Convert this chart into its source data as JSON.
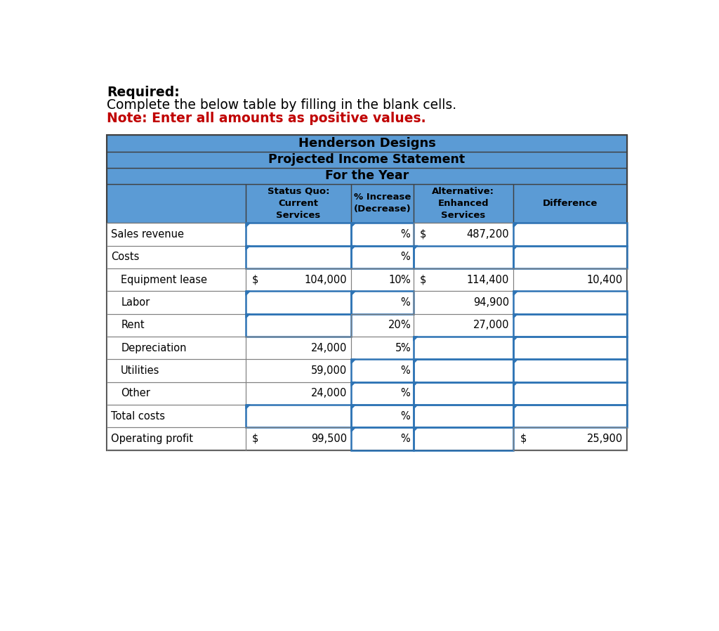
{
  "title1": "Henderson Designs",
  "title2": "Projected Income Statement",
  "title3": "For the Year",
  "rows": [
    {
      "label": "Sales revenue",
      "indent": 0,
      "sq": "",
      "sq_prefix": "",
      "pct_num": "",
      "alt_prefix": "$",
      "alt": "487,200",
      "diff": "",
      "diff_prefix": "",
      "input_sq": true,
      "input_pct": true,
      "input_alt": false,
      "input_diff": true
    },
    {
      "label": "Costs",
      "indent": 0,
      "sq": "",
      "sq_prefix": "",
      "pct_num": "",
      "alt_prefix": "",
      "alt": "",
      "diff": "",
      "diff_prefix": "",
      "input_sq": true,
      "input_pct": true,
      "input_alt": true,
      "input_diff": true
    },
    {
      "label": "Equipment lease",
      "indent": 1,
      "sq": "104,000",
      "sq_prefix": "$",
      "pct_num": "10",
      "alt_prefix": "$",
      "alt": "114,400",
      "diff": "10,400",
      "diff_prefix": "",
      "input_sq": false,
      "input_pct": false,
      "input_alt": false,
      "input_diff": false
    },
    {
      "label": "Labor",
      "indent": 1,
      "sq": "",
      "sq_prefix": "",
      "pct_num": "",
      "alt_prefix": "",
      "alt": "94,900",
      "diff": "",
      "diff_prefix": "",
      "input_sq": true,
      "input_pct": true,
      "input_alt": false,
      "input_diff": true
    },
    {
      "label": "Rent",
      "indent": 1,
      "sq": "",
      "sq_prefix": "",
      "pct_num": "20",
      "alt_prefix": "",
      "alt": "27,000",
      "diff": "",
      "diff_prefix": "",
      "input_sq": true,
      "input_pct": false,
      "input_alt": false,
      "input_diff": true
    },
    {
      "label": "Depreciation",
      "indent": 1,
      "sq": "24,000",
      "sq_prefix": "",
      "pct_num": "5",
      "alt_prefix": "",
      "alt": "",
      "diff": "",
      "diff_prefix": "",
      "input_sq": false,
      "input_pct": false,
      "input_alt": true,
      "input_diff": true
    },
    {
      "label": "Utilities",
      "indent": 1,
      "sq": "59,000",
      "sq_prefix": "",
      "pct_num": "",
      "alt_prefix": "",
      "alt": "",
      "diff": "",
      "diff_prefix": "",
      "input_sq": false,
      "input_pct": true,
      "input_alt": true,
      "input_diff": true
    },
    {
      "label": "Other",
      "indent": 1,
      "sq": "24,000",
      "sq_prefix": "",
      "pct_num": "",
      "alt_prefix": "",
      "alt": "",
      "diff": "",
      "diff_prefix": "",
      "input_sq": false,
      "input_pct": true,
      "input_alt": true,
      "input_diff": true
    },
    {
      "label": "Total costs",
      "indent": 0,
      "sq": "",
      "sq_prefix": "",
      "pct_num": "",
      "alt_prefix": "",
      "alt": "",
      "diff": "",
      "diff_prefix": "",
      "input_sq": true,
      "input_pct": true,
      "input_alt": true,
      "input_diff": true
    },
    {
      "label": "Operating profit",
      "indent": 0,
      "sq": "99,500",
      "sq_prefix": "$",
      "pct_num": "",
      "alt_prefix": "",
      "alt": "",
      "diff": "25,900",
      "diff_prefix": "$",
      "input_sq": false,
      "input_pct": true,
      "input_alt": true,
      "input_diff": false
    }
  ],
  "header_bg": "#5b9bd5",
  "white_bg": "#ffffff",
  "input_border_color": "#2e74b5",
  "text_color_red": "#c00000",
  "above_line1": "Required:",
  "above_line2": "Complete the below table by filling in the blank cells.",
  "above_line3": "Note: Enter all amounts as positive values."
}
